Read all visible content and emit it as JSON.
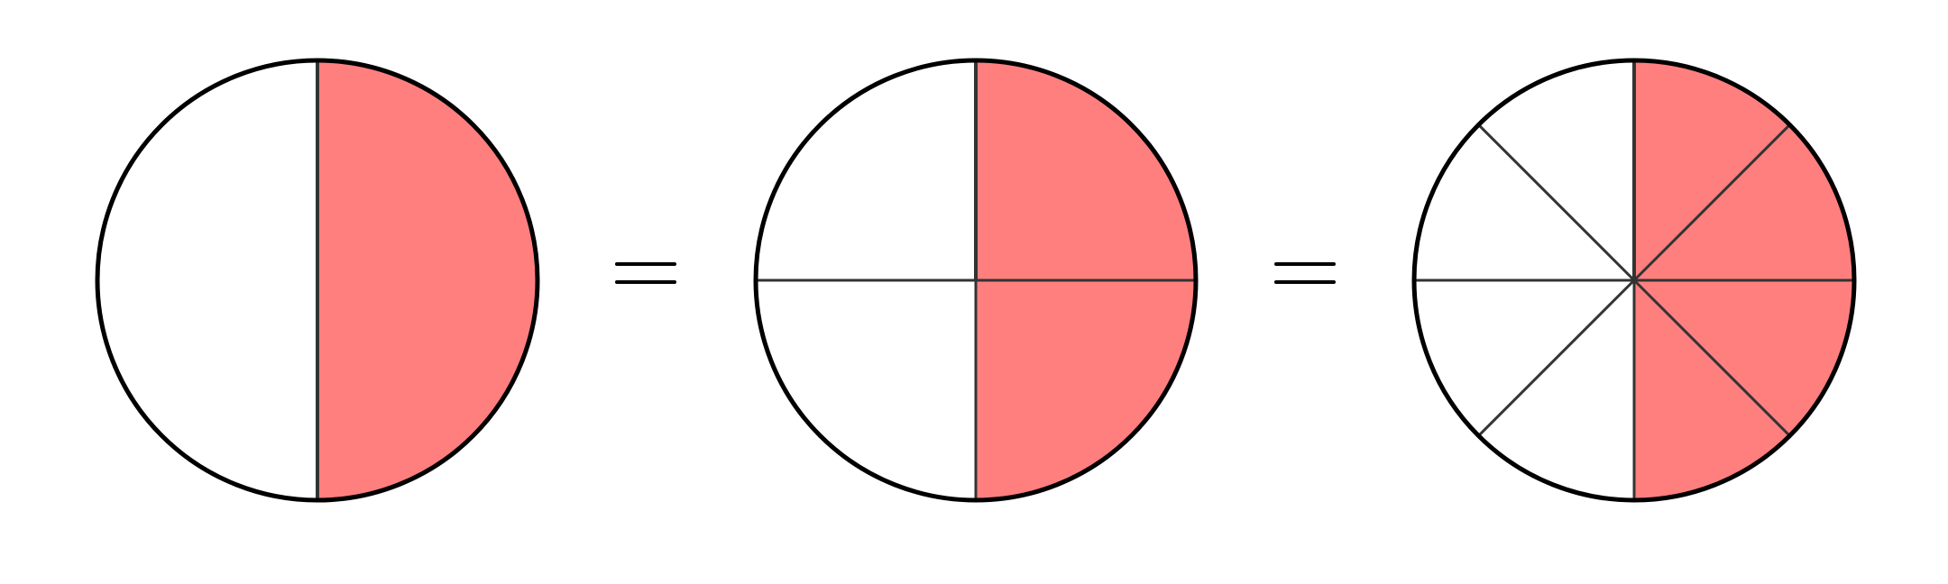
{
  "figure": {
    "colors": {
      "fill": "#ff7f7f",
      "background": "#ffffff",
      "outline": "#000000",
      "divider": "#333333"
    },
    "circles": [
      {
        "name": "halves-circle",
        "parts": 2,
        "shaded": 1,
        "rotation_deg": 90
      },
      {
        "name": "quarters-circle",
        "parts": 4,
        "shaded": 2,
        "rotation_deg": 90
      },
      {
        "name": "eighths-circle",
        "parts": 8,
        "shaded": 4,
        "rotation_deg": 90
      }
    ],
    "operators": [
      {
        "name": "equals-sign-1",
        "symbol": "="
      },
      {
        "name": "equals-sign-2",
        "symbol": "="
      }
    ]
  }
}
